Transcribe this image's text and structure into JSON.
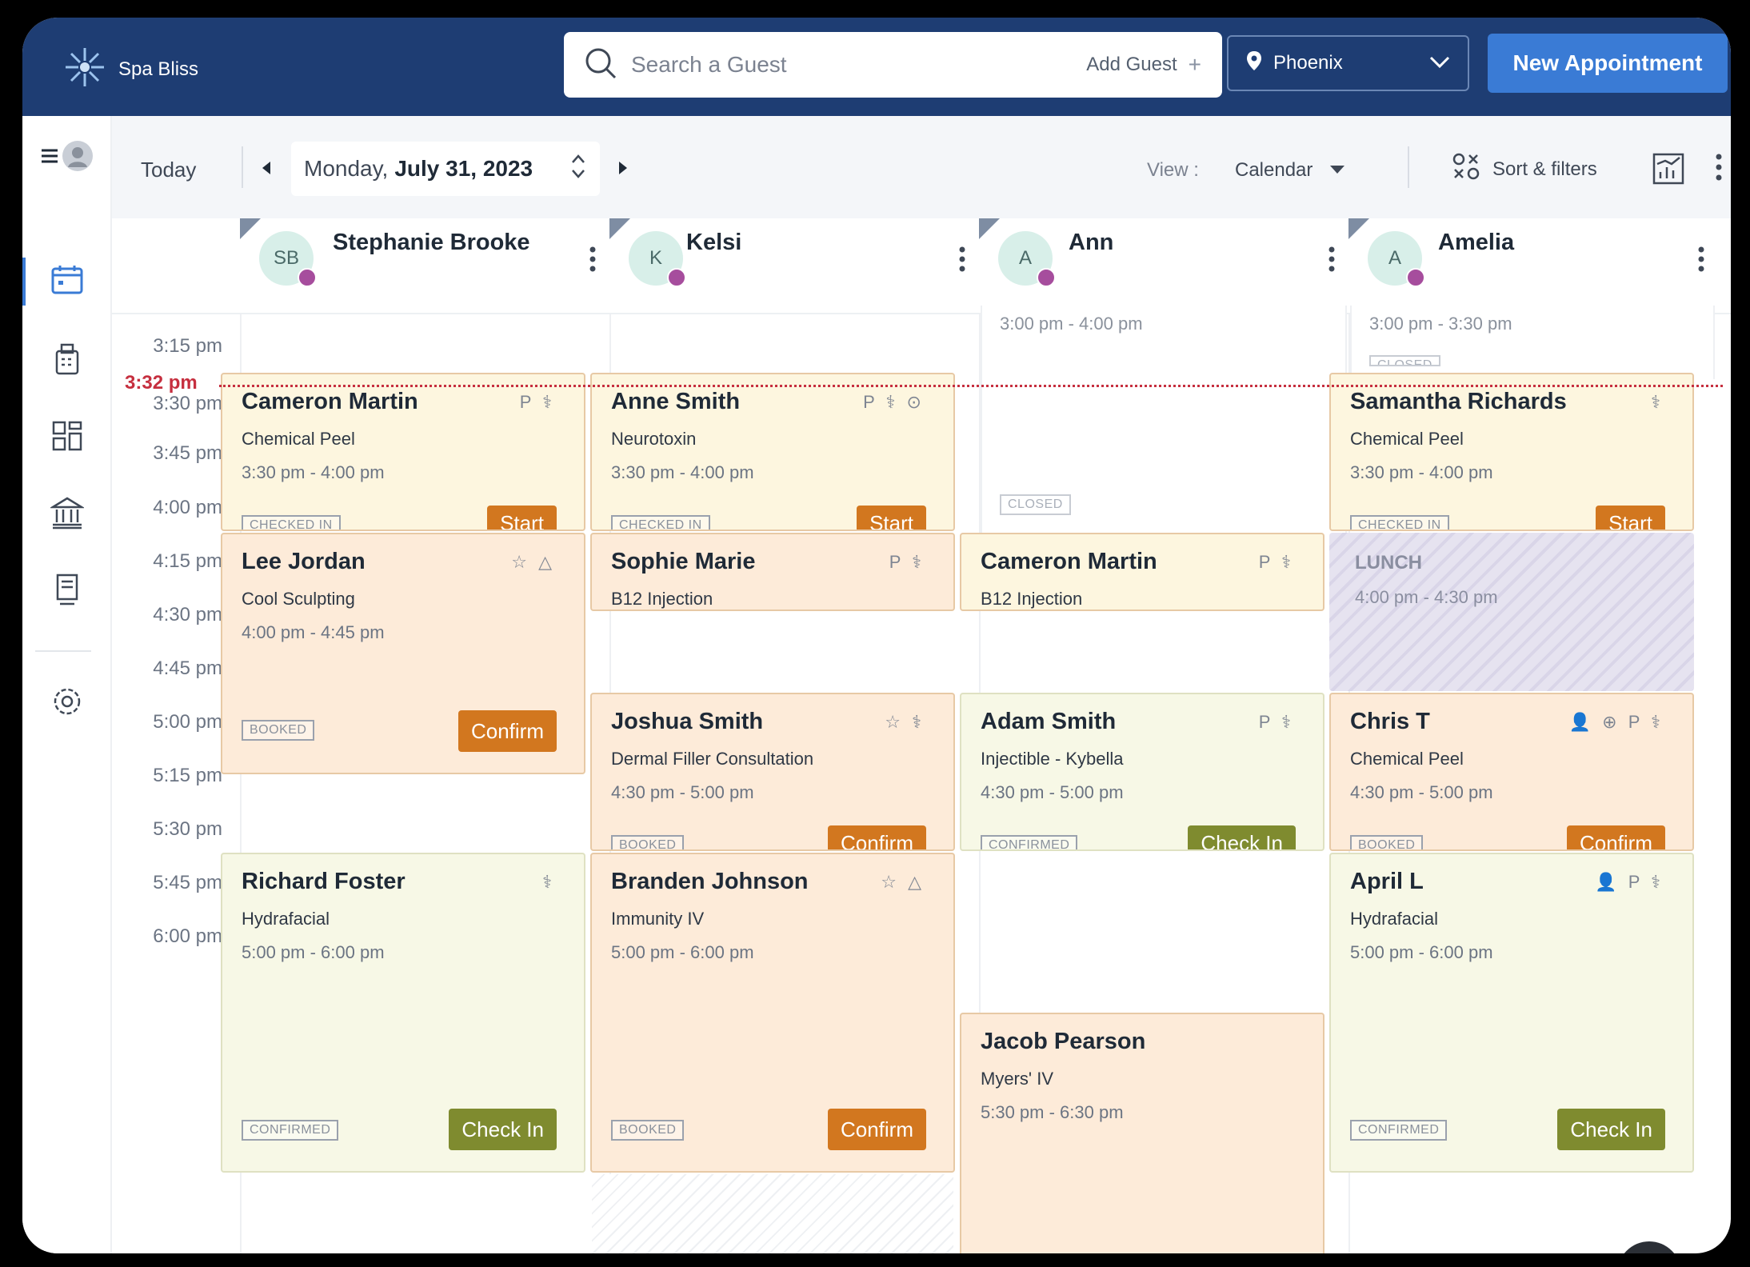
{
  "app": {
    "brand": "Spa Bliss"
  },
  "header": {
    "search_placeholder": "Search a Guest",
    "add_guest": "Add Guest",
    "location": "Phoenix",
    "new_appointment": "New Appointment"
  },
  "toolbar": {
    "today": "Today",
    "date_day": "Monday,",
    "date_rest": "July 31, 2023",
    "view_label": "View :",
    "view_value": "Calendar",
    "sort_filters": "Sort & filters"
  },
  "now_label": "3:32 pm",
  "staff": [
    {
      "initials": "SB",
      "name": "Stephanie Brooke"
    },
    {
      "initials": "K",
      "name": "Kelsi"
    },
    {
      "initials": "A",
      "name": "Ann"
    },
    {
      "initials": "A",
      "name": "Amelia"
    }
  ],
  "times": [
    "3:15 pm",
    "3:30 pm",
    "3:45 pm",
    "4:00 pm",
    "4:15 pm",
    "4:30 pm",
    "4:45 pm",
    "5:00 pm",
    "5:15 pm",
    "5:30 pm",
    "5:45 pm",
    "6:00 pm"
  ],
  "closed": {
    "ann_time": "3:00 pm - 4:00 pm",
    "ann_badge": "CLOSED",
    "amelia_time": "3:00 pm - 3:30 pm",
    "amelia_badge": "CLOSED"
  },
  "lunch": {
    "title": "LUNCH",
    "time": "4:00 pm - 4:30 pm"
  },
  "appointments": {
    "sb1": {
      "name": "Cameron Martin",
      "service": "Chemical Peel",
      "time": "3:30 pm - 4:00 pm",
      "icons": "P ⚕",
      "badge": "CHECKED IN",
      "button": "Start"
    },
    "sb2": {
      "name": "Lee Jordan",
      "service": "Cool Sculpting",
      "time": "4:00 pm - 4:45 pm",
      "icons": "☆ △",
      "badge": "BOOKED",
      "button": "Confirm"
    },
    "sb3": {
      "name": "Richard Foster",
      "service": "Hydrafacial",
      "time": "5:00 pm - 6:00 pm",
      "icons": "⚕",
      "badge": "CONFIRMED",
      "button": "Check In"
    },
    "k1": {
      "name": "Anne Smith",
      "service": "Neurotoxin",
      "time": "3:30 pm - 4:00 pm",
      "icons": "P ⚕ ⊙",
      "badge": "CHECKED IN",
      "button": "Start"
    },
    "k2": {
      "name": "Sophie Marie",
      "service": "B12 Injection",
      "icons": "P ⚕"
    },
    "k3": {
      "name": "Joshua Smith",
      "service": "Dermal Filler Consultation",
      "time": "4:30 pm - 5:00 pm",
      "icons": "☆ ⚕",
      "badge": "BOOKED",
      "button": "Confirm"
    },
    "k4": {
      "name": "Branden Johnson",
      "service": "Immunity IV",
      "time": "5:00 pm - 6:00 pm",
      "icons": "☆ △",
      "badge": "BOOKED",
      "button": "Confirm"
    },
    "a1": {
      "name": "Cameron Martin",
      "service": "B12 Injection",
      "icons": "P ⚕"
    },
    "a2": {
      "name": "Adam Smith",
      "service": "Injectible - Kybella",
      "time": "4:30 pm - 5:00 pm",
      "icons": "P ⚕",
      "badge": "CONFIRMED",
      "button": "Check In"
    },
    "a3": {
      "name": "Jacob Pearson",
      "service": "Myers' IV",
      "time": "5:30 pm - 6:30 pm"
    },
    "m1": {
      "name": "Samantha Richards",
      "service": "Chemical Peel",
      "time": "3:30 pm - 4:00 pm",
      "icons": "⚕",
      "badge": "CHECKED IN",
      "button": "Start"
    },
    "m2": {
      "name": "Chris T",
      "service": "Chemical Peel",
      "time": "4:30 pm - 5:00 pm",
      "icons": "👤 ⊕ P ⚕",
      "badge": "BOOKED",
      "button": "Confirm"
    },
    "m3": {
      "name": "April L",
      "service": "Hydrafacial",
      "time": "5:00 pm - 6:00 pm",
      "icons": "👤 P ⚕",
      "badge": "CONFIRMED",
      "button": "Check In"
    }
  },
  "colors": {
    "header": "#1e3d73",
    "accent": "#3a7bd5",
    "now": "#c62f3f",
    "confirm": "#d2771f",
    "checkin": "#7f8b2f"
  },
  "icons": [
    "logo-flower-icon",
    "search-icon",
    "plus-icon",
    "location-pin-icon",
    "chevron-down-icon",
    "menu-icon",
    "user-icon",
    "calendar-icon",
    "pos-icon",
    "dashboard-icon",
    "bank-icon",
    "document-icon",
    "settings-icon",
    "filter-icon",
    "report-icon",
    "kebab-icon"
  ]
}
